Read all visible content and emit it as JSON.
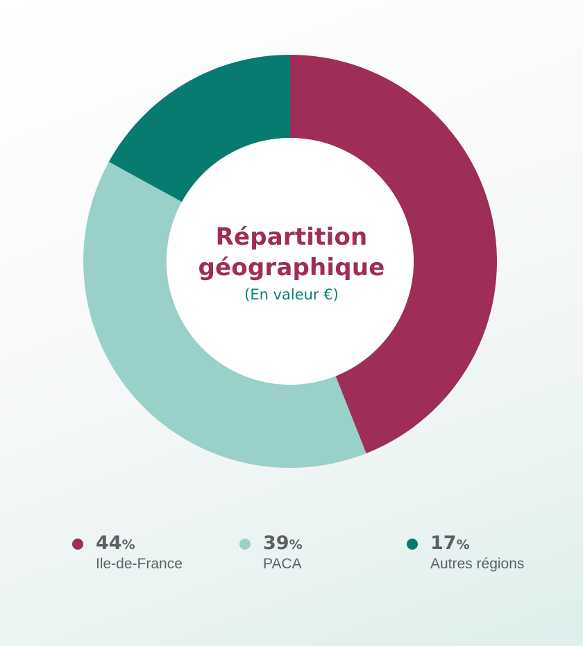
{
  "chart_data": {
    "type": "pie",
    "donut": true,
    "title_lines": [
      "Répartition",
      "géographique"
    ],
    "subtitle": "(En valeur €)",
    "slices": [
      {
        "label": "Ile-de-France",
        "value": 44,
        "display": "44",
        "unit": "%",
        "color": "#9e2d57"
      },
      {
        "label": "PACA",
        "value": 39,
        "display": "39",
        "unit": "%",
        "color": "#99d0ca"
      },
      {
        "label": "Autres régions",
        "value": 17,
        "display": "17",
        "unit": "%",
        "color": "#087b70"
      }
    ]
  }
}
